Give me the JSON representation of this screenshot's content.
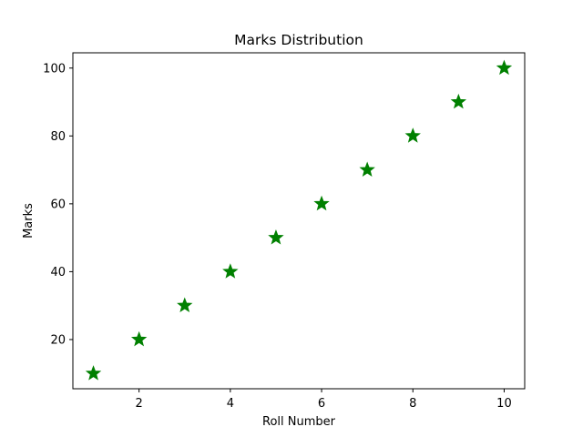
{
  "chart_data": {
    "type": "scatter",
    "title": "Marks Distribution",
    "xlabel": "Roll Number",
    "ylabel": "Marks",
    "xlim": [
      0.55,
      10.45
    ],
    "ylim": [
      5.5,
      104.5
    ],
    "xticks": [
      2,
      4,
      6,
      8,
      10
    ],
    "yticks": [
      20,
      40,
      60,
      80,
      100
    ],
    "grid": false,
    "marker": "star",
    "color": "#008000",
    "x": [
      1,
      2,
      3,
      4,
      5,
      6,
      7,
      8,
      9,
      10
    ],
    "y": [
      10,
      20,
      30,
      40,
      50,
      60,
      70,
      80,
      90,
      100
    ]
  }
}
